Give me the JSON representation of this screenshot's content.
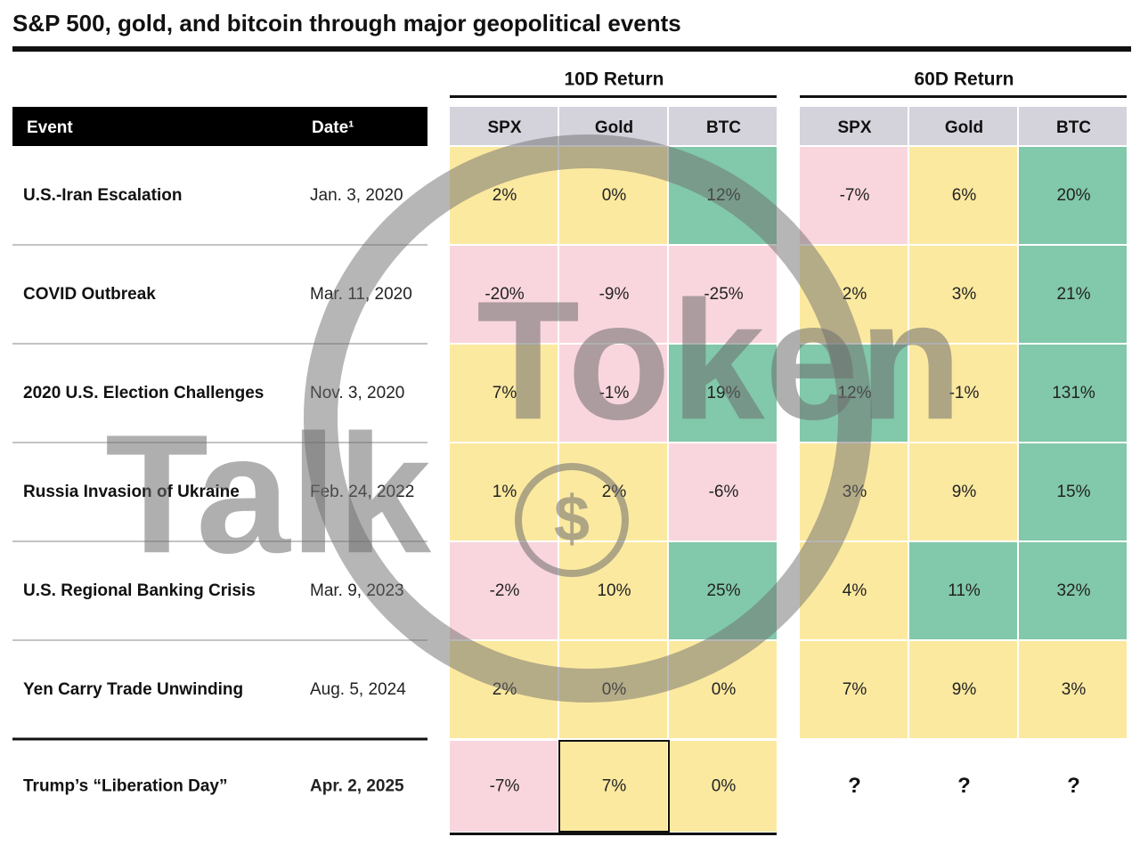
{
  "title": "S&P 500, gold, and bitcoin through major geopolitical events",
  "groups": [
    "10D Return",
    "60D Return"
  ],
  "columns": [
    "SPX",
    "Gold",
    "BTC"
  ],
  "header": {
    "event": "Event",
    "date": "Date¹"
  },
  "rows": [
    {
      "event": "U.S.-Iran Escalation",
      "date": "Jan. 3, 2020",
      "values": [
        "2%",
        "0%",
        "12%",
        "-7%",
        "6%",
        "20%"
      ],
      "colors": [
        "#fbe9a0",
        "#fbe9a0",
        "#82c8aa",
        "#f9d6de",
        "#fbe9a0",
        "#82c8aa"
      ]
    },
    {
      "event": "COVID Outbreak",
      "date": "Mar. 11, 2020",
      "values": [
        "-20%",
        "-9%",
        "-25%",
        "2%",
        "3%",
        "21%"
      ],
      "colors": [
        "#f9d6de",
        "#f9d6de",
        "#f9d6de",
        "#fbe9a0",
        "#fbe9a0",
        "#82c8aa"
      ]
    },
    {
      "event": "2020 U.S. Election Challenges",
      "date": "Nov. 3, 2020",
      "values": [
        "7%",
        "-1%",
        "19%",
        "12%",
        "-1%",
        "131%"
      ],
      "colors": [
        "#fbe9a0",
        "#f9d6de",
        "#82c8aa",
        "#82c8aa",
        "#fbe9a0",
        "#82c8aa"
      ]
    },
    {
      "event": "Russia Invasion of Ukraine",
      "date": "Feb. 24, 2022",
      "values": [
        "1%",
        "2%",
        "-6%",
        "3%",
        "9%",
        "15%"
      ],
      "colors": [
        "#fbe9a0",
        "#fbe9a0",
        "#f9d6de",
        "#fbe9a0",
        "#fbe9a0",
        "#82c8aa"
      ]
    },
    {
      "event": "U.S. Regional Banking Crisis",
      "date": "Mar. 9, 2023",
      "values": [
        "-2%",
        "10%",
        "25%",
        "4%",
        "11%",
        "32%"
      ],
      "colors": [
        "#f9d6de",
        "#fbe9a0",
        "#82c8aa",
        "#fbe9a0",
        "#82c8aa",
        "#82c8aa"
      ]
    },
    {
      "event": "Yen Carry Trade Unwinding",
      "date": "Aug. 5, 2024",
      "values": [
        "2%",
        "0%",
        "0%",
        "7%",
        "9%",
        "3%"
      ],
      "colors": [
        "#fbe9a0",
        "#fbe9a0",
        "#fbe9a0",
        "#fbe9a0",
        "#fbe9a0",
        "#fbe9a0"
      ]
    },
    {
      "event": "Trump’s “Liberation Day”",
      "date": "Apr. 2, 2025",
      "values": [
        "-7%",
        "7%",
        "0%",
        "?",
        "?",
        "?"
      ],
      "colors": [
        "#f9d6de",
        "#fbe9a0",
        "#fbe9a0",
        "#ffffff",
        "#ffffff",
        "#ffffff"
      ]
    }
  ],
  "watermark": {
    "top": "Token",
    "bottom": "Talk",
    "symbol": "$"
  }
}
